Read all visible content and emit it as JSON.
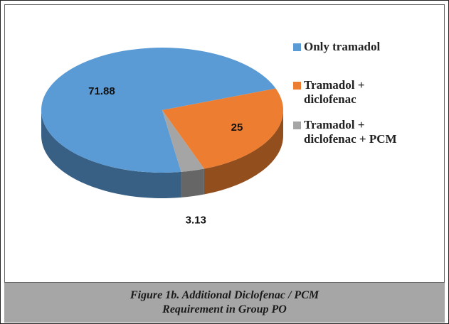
{
  "chart_data": {
    "type": "pie3d",
    "categories": [
      "Only tramadol",
      "Tramadol + diclofenac",
      "Tramadol + diclofenac + PCM"
    ],
    "values": [
      71.88,
      25,
      3.13
    ],
    "colors": [
      "#5b9bd5",
      "#ed7d31",
      "#a5a5a5"
    ],
    "legend": "right",
    "caption": "Figure 1b. Additional Diclofenac / PCM Requirement in Group PO"
  }
}
